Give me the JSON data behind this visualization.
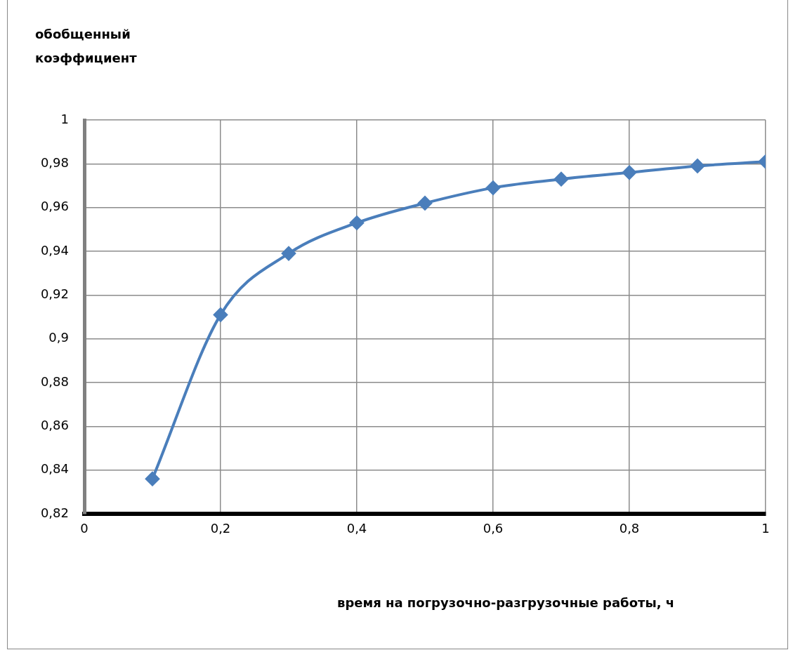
{
  "chart_data": {
    "type": "line",
    "ylabel": "обобщенный коэффициент",
    "xlabel": "время на погрузочно-разгрузочные работы, ч",
    "x": [
      0.1,
      0.2,
      0.3,
      0.4,
      0.5,
      0.6,
      0.7,
      0.8,
      0.9,
      1
    ],
    "series": [
      {
        "color": "#4a7ebb",
        "values": [
          0.836,
          0.911,
          0.939,
          0.953,
          0.962,
          0.969,
          0.973,
          0.976,
          0.979,
          0.981
        ]
      }
    ],
    "xlim": [
      0,
      1
    ],
    "xticks": [
      0,
      {
        "value": 0.2,
        "label": "0,2"
      },
      {
        "value": 0.4,
        "label": "0,4"
      },
      {
        "value": 0.6,
        "label": "0,6"
      },
      {
        "value": 0.8,
        "label": "0,8"
      },
      1
    ],
    "ylim": [
      0.82,
      1
    ],
    "yticks": [
      {
        "value": 0.82,
        "label": "0,82"
      },
      {
        "value": 0.84,
        "label": "0,84"
      },
      {
        "value": 0.86,
        "label": "0,86"
      },
      {
        "value": 0.88,
        "label": "0,88"
      },
      {
        "value": 0.9,
        "label": "0,9"
      },
      {
        "value": 0.92,
        "label": "0,92"
      },
      {
        "value": 0.94,
        "label": "0,94"
      },
      {
        "value": 0.96,
        "label": "0,96"
      },
      {
        "value": 0.98,
        "label": "0,98"
      },
      1
    ],
    "grid": true,
    "legend": false,
    "marker": "diamond",
    "line_style": "solid"
  }
}
